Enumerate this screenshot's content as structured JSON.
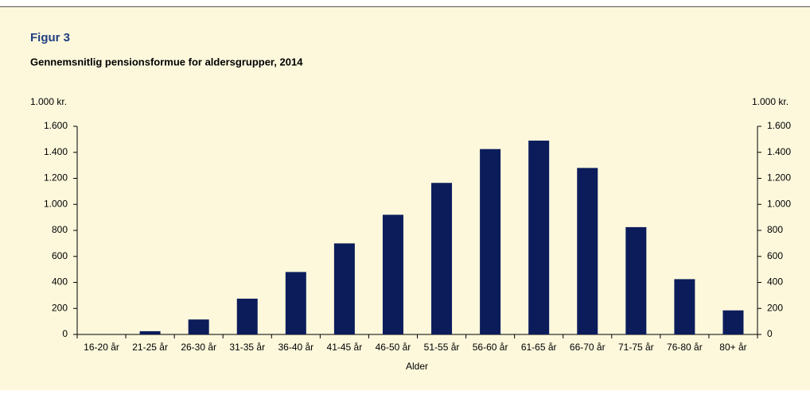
{
  "chart_data": {
    "type": "bar",
    "figure_label": "Figur 3",
    "title": "Gennemsnitlig pensionsformue for aldersgrupper, 2014",
    "y_unit": "1.000 kr.",
    "y2_unit": "1.000 kr.",
    "x_label": "Alder",
    "categories": [
      "16-20 år",
      "21-25 år",
      "26-30 år",
      "31-35 år",
      "36-40 år",
      "41-45 år",
      "46-50 år",
      "51-55 år",
      "56-60 år",
      "61-65 år",
      "66-70 år",
      "71-75 år",
      "76-80 år",
      "80+ år"
    ],
    "values": [
      0,
      25,
      115,
      275,
      480,
      700,
      920,
      1165,
      1425,
      1490,
      1280,
      825,
      425,
      185
    ],
    "color": "#0c1c5b",
    "ylim": [
      0,
      1600
    ],
    "yticks": [
      0,
      200,
      400,
      600,
      800,
      {
        "value": 1000,
        "label": "1.000"
      },
      {
        "value": 1200,
        "label": "1.200"
      },
      {
        "value": 1400,
        "label": "1.400"
      },
      {
        "value": 1600,
        "label": "1.600"
      }
    ],
    "y2lim": [
      0,
      1600
    ],
    "y2ticks": [
      0,
      200,
      400,
      600,
      800,
      {
        "value": 1000,
        "label": "1.000"
      },
      {
        "value": 1200,
        "label": "1.200"
      },
      {
        "value": 1400,
        "label": "1.400"
      },
      {
        "value": 1600,
        "label": "1.600"
      }
    ],
    "grid": false
  }
}
